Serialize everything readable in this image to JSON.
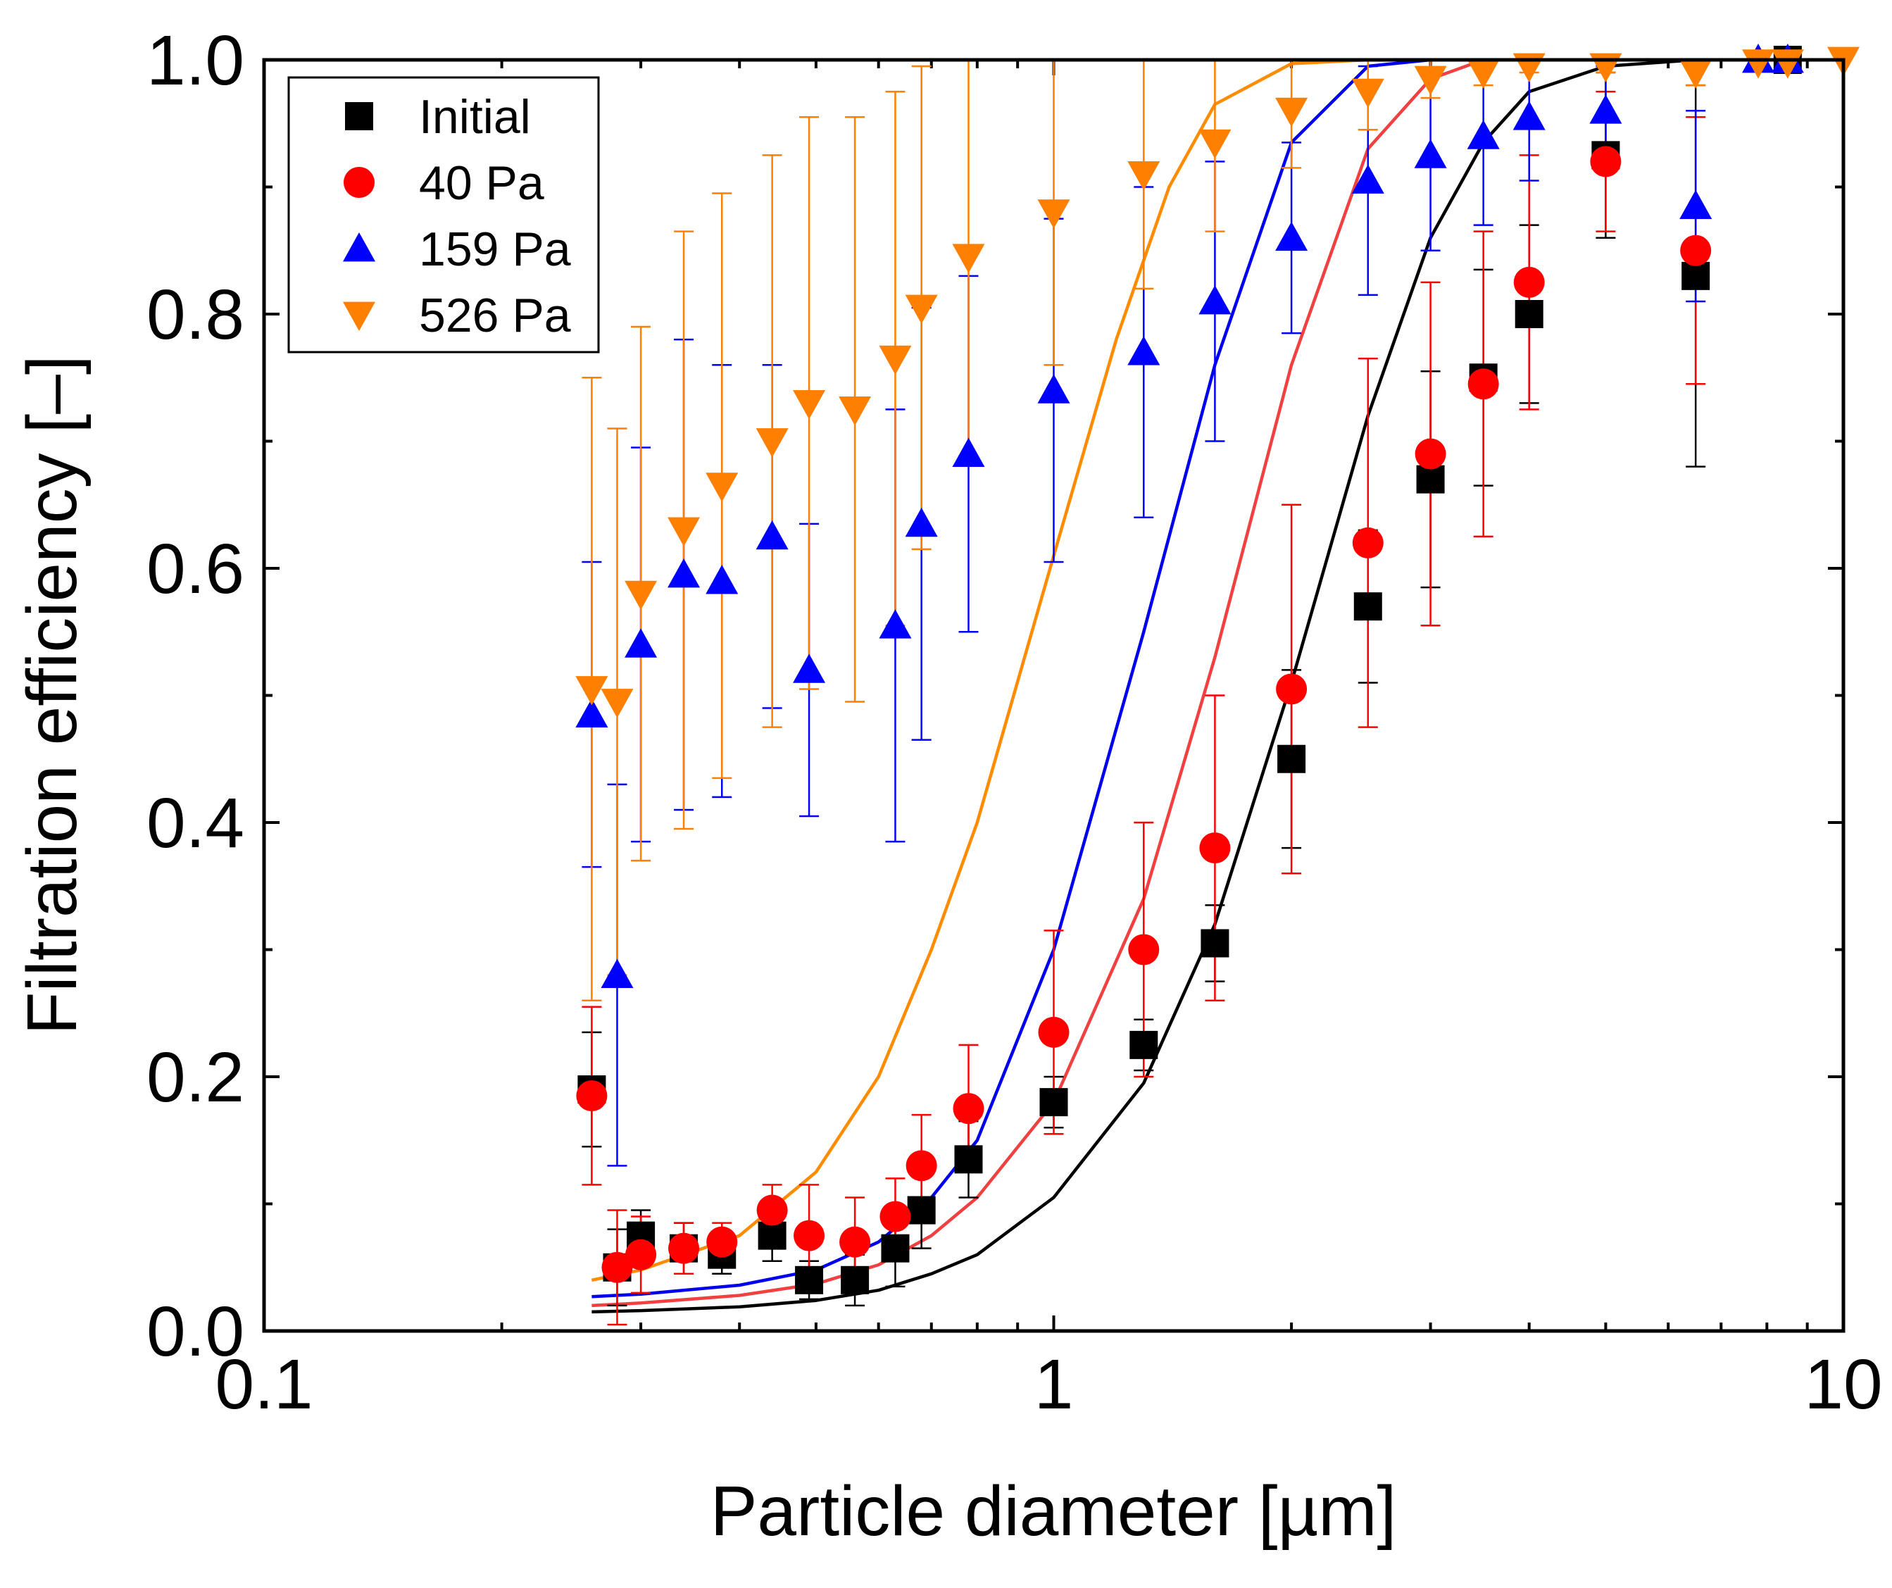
{
  "chart_data": {
    "type": "scatter",
    "title": "",
    "xlabel": "Particle diameter [µm]",
    "ylabel": "Filtration efficiency [–]",
    "xscale": "log",
    "xlim": [
      0.1,
      10
    ],
    "ylim": [
      0.0,
      1.0
    ],
    "x_ticks": [
      0.1,
      1,
      10
    ],
    "x_tick_labels": [
      "0.1",
      "1",
      "10"
    ],
    "y_ticks": [
      0.0,
      0.2,
      0.4,
      0.6,
      0.8,
      1.0
    ],
    "y_tick_labels": [
      "0.0",
      "0.2",
      "0.4",
      "0.6",
      "0.8",
      "1.0"
    ],
    "grid": false,
    "legend_position": "top-left",
    "series": [
      {
        "name": "Initial",
        "marker": "square",
        "color": "#000000",
        "x": [
          0.26,
          0.28,
          0.3,
          0.34,
          0.38,
          0.44,
          0.49,
          0.56,
          0.63,
          0.68,
          0.78,
          1.0,
          1.3,
          1.6,
          2.0,
          2.5,
          3.0,
          3.5,
          4.0,
          5.0,
          6.5,
          8.5
        ],
        "y": [
          0.19,
          0.05,
          0.075,
          0.065,
          0.06,
          0.075,
          0.04,
          0.04,
          0.065,
          0.095,
          0.135,
          0.18,
          0.225,
          0.305,
          0.45,
          0.57,
          0.67,
          0.75,
          0.8,
          0.925,
          0.83,
          1.0
        ],
        "err": [
          0.045,
          0.03,
          0.02,
          0.02,
          0.015,
          0.02,
          0.015,
          0.02,
          0.03,
          0.03,
          0.03,
          0.02,
          0.02,
          0.03,
          0.07,
          0.06,
          0.085,
          0.085,
          0.07,
          0.065,
          0.15,
          0.0
        ]
      },
      {
        "name": "40 Pa",
        "marker": "circle",
        "color": "#ff0000",
        "x": [
          0.26,
          0.28,
          0.3,
          0.34,
          0.38,
          0.44,
          0.49,
          0.56,
          0.63,
          0.68,
          0.78,
          1.0,
          1.3,
          1.6,
          2.0,
          2.5,
          3.0,
          3.5,
          4.0,
          5.0,
          6.5
        ],
        "y": [
          0.185,
          0.05,
          0.06,
          0.065,
          0.07,
          0.095,
          0.075,
          0.07,
          0.09,
          0.13,
          0.175,
          0.235,
          0.3,
          0.38,
          0.505,
          0.62,
          0.69,
          0.745,
          0.825,
          0.92,
          0.85
        ],
        "err": [
          0.07,
          0.045,
          0.03,
          0.02,
          0.015,
          0.02,
          0.04,
          0.035,
          0.03,
          0.04,
          0.05,
          0.08,
          0.1,
          0.12,
          0.145,
          0.145,
          0.135,
          0.12,
          0.1,
          0.055,
          0.105
        ]
      },
      {
        "name": "159 Pa",
        "marker": "triangle-up",
        "color": "#0000ff",
        "x": [
          0.26,
          0.28,
          0.3,
          0.34,
          0.38,
          0.44,
          0.49,
          0.63,
          0.68,
          0.78,
          1.0,
          1.3,
          1.6,
          2.0,
          2.5,
          3.0,
          3.5,
          4.0,
          5.0,
          6.5,
          7.8,
          8.5
        ],
        "y": [
          0.485,
          0.28,
          0.54,
          0.595,
          0.59,
          0.625,
          0.52,
          0.555,
          0.635,
          0.69,
          0.74,
          0.77,
          0.81,
          0.86,
          0.905,
          0.925,
          0.94,
          0.955,
          0.96,
          0.885,
          1.0,
          1.0
        ],
        "err": [
          0.12,
          0.15,
          0.155,
          0.185,
          0.17,
          0.135,
          0.115,
          0.17,
          0.17,
          0.14,
          0.135,
          0.13,
          0.11,
          0.075,
          0.09,
          0.075,
          0.07,
          0.05,
          0.035,
          0.075,
          0.0,
          0.0
        ]
      },
      {
        "name": "526 Pa",
        "marker": "triangle-down",
        "color": "#ff7f00",
        "x": [
          0.26,
          0.28,
          0.3,
          0.34,
          0.38,
          0.44,
          0.49,
          0.56,
          0.63,
          0.68,
          0.78,
          1.0,
          1.3,
          1.6,
          2.0,
          2.5,
          3.0,
          3.5,
          4.0,
          5.0,
          6.5,
          7.8,
          8.5,
          10.0
        ],
        "y": [
          0.505,
          0.495,
          0.58,
          0.63,
          0.665,
          0.7,
          0.73,
          0.725,
          0.765,
          0.805,
          0.845,
          0.88,
          0.91,
          0.935,
          0.96,
          0.975,
          0.985,
          0.99,
          0.995,
          0.995,
          0.99,
          0.998,
          0.998,
          1.0
        ],
        "err": [
          0.245,
          0.215,
          0.21,
          0.235,
          0.23,
          0.225,
          0.225,
          0.23,
          0.21,
          0.19,
          0.16,
          0.12,
          0.09,
          0.07,
          0.045,
          0.03,
          0.015,
          0.01,
          0.005,
          0.005,
          0.01,
          0.0,
          0.0,
          0.0
        ]
      }
    ],
    "fit_lines": [
      {
        "series": "Initial",
        "color": "#000000",
        "x": [
          0.26,
          0.3,
          0.4,
          0.5,
          0.6,
          0.7,
          0.8,
          1.0,
          1.3,
          1.6,
          2.0,
          2.5,
          3.0,
          3.5,
          4.0,
          5.0,
          6.5,
          8.5,
          10.0
        ],
        "y": [
          0.015,
          0.016,
          0.019,
          0.024,
          0.032,
          0.045,
          0.06,
          0.105,
          0.195,
          0.32,
          0.51,
          0.72,
          0.86,
          0.935,
          0.975,
          0.995,
          1.0,
          1.0,
          1.0
        ]
      },
      {
        "series": "40 Pa",
        "color": "#f04040",
        "x": [
          0.26,
          0.3,
          0.4,
          0.5,
          0.6,
          0.7,
          0.8,
          1.0,
          1.3,
          1.6,
          2.0,
          2.5,
          3.0,
          3.5,
          4.0,
          5.0,
          10.0
        ],
        "y": [
          0.02,
          0.022,
          0.028,
          0.037,
          0.052,
          0.075,
          0.105,
          0.18,
          0.34,
          0.53,
          0.76,
          0.93,
          0.985,
          1.0,
          1.0,
          1.0,
          1.0
        ]
      },
      {
        "series": "159 Pa",
        "color": "#0000ee",
        "x": [
          0.26,
          0.3,
          0.4,
          0.5,
          0.6,
          0.7,
          0.8,
          1.0,
          1.3,
          1.6,
          2.0,
          2.5,
          3.0,
          4.0,
          10.0
        ],
        "y": [
          0.027,
          0.029,
          0.036,
          0.048,
          0.07,
          0.105,
          0.15,
          0.3,
          0.55,
          0.76,
          0.935,
          0.995,
          1.0,
          1.0,
          1.0
        ]
      },
      {
        "series": "526 Pa",
        "color": "#ff8c00",
        "x": [
          0.26,
          0.3,
          0.4,
          0.5,
          0.6,
          0.7,
          0.8,
          1.0,
          1.2,
          1.4,
          1.6,
          2.0,
          2.5,
          3.0,
          10.0
        ],
        "y": [
          0.04,
          0.048,
          0.075,
          0.125,
          0.2,
          0.3,
          0.4,
          0.61,
          0.78,
          0.9,
          0.965,
          0.997,
          1.0,
          1.0,
          1.0
        ]
      }
    ]
  }
}
